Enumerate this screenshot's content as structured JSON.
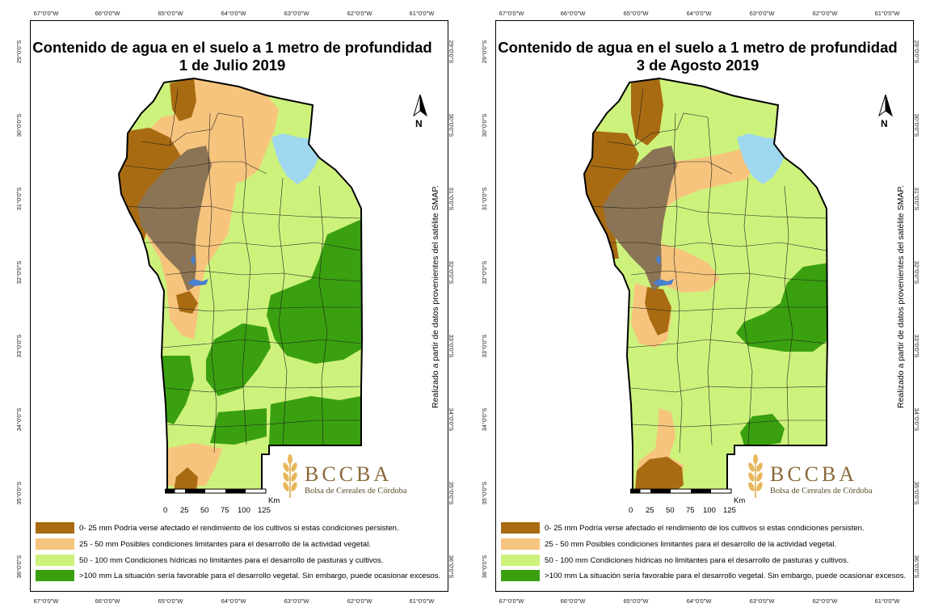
{
  "maps": [
    {
      "title_line1": "Contenido de agua en el suelo a 1 metro de profundidad",
      "title_line2": "1 de Julio 2019"
    },
    {
      "title_line1": "Contenido de agua en el suelo a 1 metro de profundidad",
      "title_line2": "3 de Agosto 2019"
    }
  ],
  "longitudes": [
    "67°0'0\"W",
    "66°0'0\"W",
    "65°0'0\"W",
    "64°0'0\"W",
    "63°0'0\"W",
    "62°0'0\"W",
    "61°0'0\"W"
  ],
  "latitudes": [
    "29°0'0\"S",
    "30°0'0\"S",
    "31°0'0\"S",
    "32°0'0\"S",
    "33°0'0\"S",
    "34°0'0\"S",
    "35°0'0\"S",
    "36°0'0\"S"
  ],
  "credit": "Realizado a partir de datos provenientes del satélite SMAP.",
  "north_label": "N",
  "scale": {
    "ticks": [
      "0",
      "25",
      "50",
      "75",
      "100",
      "125"
    ],
    "unit": "Km"
  },
  "logo": {
    "word": "BCCBA",
    "subtitle": "Bolsa de Cereales de Córdoba"
  },
  "legend": [
    {
      "color": "#a86b12",
      "text": "0- 25 mm Podría verse afectado el rendimiento de los cultivos si estas condiciones persisten."
    },
    {
      "color": "#f7c47d",
      "text": "25 - 50 mm Posibles condiciones limitantes para el desarrollo de la actividad vegetal."
    },
    {
      "color": "#cdf27c",
      "text": "50 - 100 mm Condiciones hídricas no limitantes para el desarrollo de pasturas y cultivos."
    },
    {
      "color": "#3aa010",
      "text": ">100 mm La situación sería favorable para el desarrollo vegetal. Sin embargo, puede ocasionar excesos."
    }
  ],
  "colors": {
    "class_0_25": "#a86b12",
    "class_25_50": "#f7c47d",
    "class_50_100": "#cdf27c",
    "class_gt_100": "#3aa010",
    "sierras": "#8b7455",
    "water": "#9fd8ee"
  }
}
